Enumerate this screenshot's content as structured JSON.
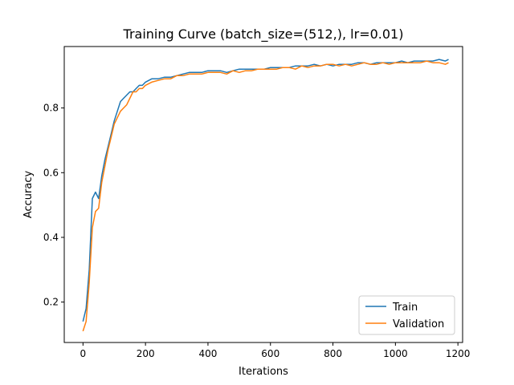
{
  "chart_data": {
    "type": "line",
    "title": "Training Curve (batch_size=(512,), lr=0.01)",
    "xlabel": "Iterations",
    "ylabel": "Accuracy",
    "xlim": [
      -60,
      1215
    ],
    "ylim": [
      0.075,
      0.99
    ],
    "xticks": [
      0,
      200,
      400,
      600,
      800,
      1000,
      1200
    ],
    "yticks": [
      0.2,
      0.4,
      0.6,
      0.8
    ],
    "grid": false,
    "legend_position": "lower-right",
    "series": [
      {
        "name": "Train",
        "color": "#1f77b4",
        "x": [
          0,
          10,
          20,
          30,
          40,
          50,
          60,
          70,
          80,
          90,
          100,
          110,
          120,
          130,
          140,
          150,
          160,
          170,
          180,
          190,
          200,
          220,
          240,
          260,
          280,
          300,
          320,
          340,
          360,
          380,
          400,
          420,
          440,
          460,
          480,
          500,
          520,
          540,
          560,
          580,
          600,
          620,
          640,
          660,
          680,
          700,
          720,
          740,
          760,
          780,
          800,
          820,
          840,
          860,
          880,
          900,
          920,
          940,
          960,
          980,
          1000,
          1020,
          1040,
          1060,
          1080,
          1100,
          1120,
          1140,
          1160,
          1170
        ],
        "y": [
          0.14,
          0.18,
          0.3,
          0.52,
          0.54,
          0.52,
          0.59,
          0.64,
          0.68,
          0.72,
          0.76,
          0.79,
          0.82,
          0.83,
          0.84,
          0.85,
          0.85,
          0.86,
          0.87,
          0.87,
          0.88,
          0.89,
          0.89,
          0.895,
          0.895,
          0.9,
          0.905,
          0.91,
          0.91,
          0.91,
          0.915,
          0.915,
          0.915,
          0.91,
          0.915,
          0.92,
          0.92,
          0.92,
          0.92,
          0.92,
          0.925,
          0.925,
          0.925,
          0.925,
          0.93,
          0.93,
          0.93,
          0.935,
          0.93,
          0.935,
          0.93,
          0.935,
          0.935,
          0.935,
          0.94,
          0.94,
          0.935,
          0.94,
          0.94,
          0.94,
          0.94,
          0.945,
          0.94,
          0.945,
          0.945,
          0.945,
          0.945,
          0.95,
          0.945,
          0.95
        ]
      },
      {
        "name": "Validation",
        "color": "#ff7f0e",
        "x": [
          0,
          10,
          20,
          30,
          40,
          50,
          60,
          70,
          80,
          90,
          100,
          110,
          120,
          130,
          140,
          150,
          160,
          170,
          180,
          190,
          200,
          220,
          240,
          260,
          280,
          300,
          320,
          340,
          360,
          380,
          400,
          420,
          440,
          460,
          480,
          500,
          520,
          540,
          560,
          580,
          600,
          620,
          640,
          660,
          680,
          700,
          720,
          740,
          760,
          780,
          800,
          820,
          840,
          860,
          880,
          900,
          920,
          940,
          960,
          980,
          1000,
          1020,
          1040,
          1060,
          1080,
          1100,
          1120,
          1140,
          1160,
          1170
        ],
        "y": [
          0.11,
          0.14,
          0.26,
          0.43,
          0.48,
          0.49,
          0.57,
          0.62,
          0.67,
          0.71,
          0.75,
          0.77,
          0.79,
          0.8,
          0.81,
          0.83,
          0.85,
          0.85,
          0.86,
          0.86,
          0.87,
          0.88,
          0.885,
          0.89,
          0.89,
          0.9,
          0.9,
          0.905,
          0.905,
          0.905,
          0.91,
          0.91,
          0.91,
          0.905,
          0.915,
          0.91,
          0.915,
          0.915,
          0.92,
          0.92,
          0.92,
          0.92,
          0.925,
          0.925,
          0.92,
          0.93,
          0.925,
          0.93,
          0.93,
          0.935,
          0.935,
          0.93,
          0.935,
          0.93,
          0.935,
          0.94,
          0.935,
          0.935,
          0.94,
          0.935,
          0.94,
          0.94,
          0.94,
          0.94,
          0.94,
          0.945,
          0.94,
          0.94,
          0.935,
          0.94
        ]
      }
    ]
  }
}
